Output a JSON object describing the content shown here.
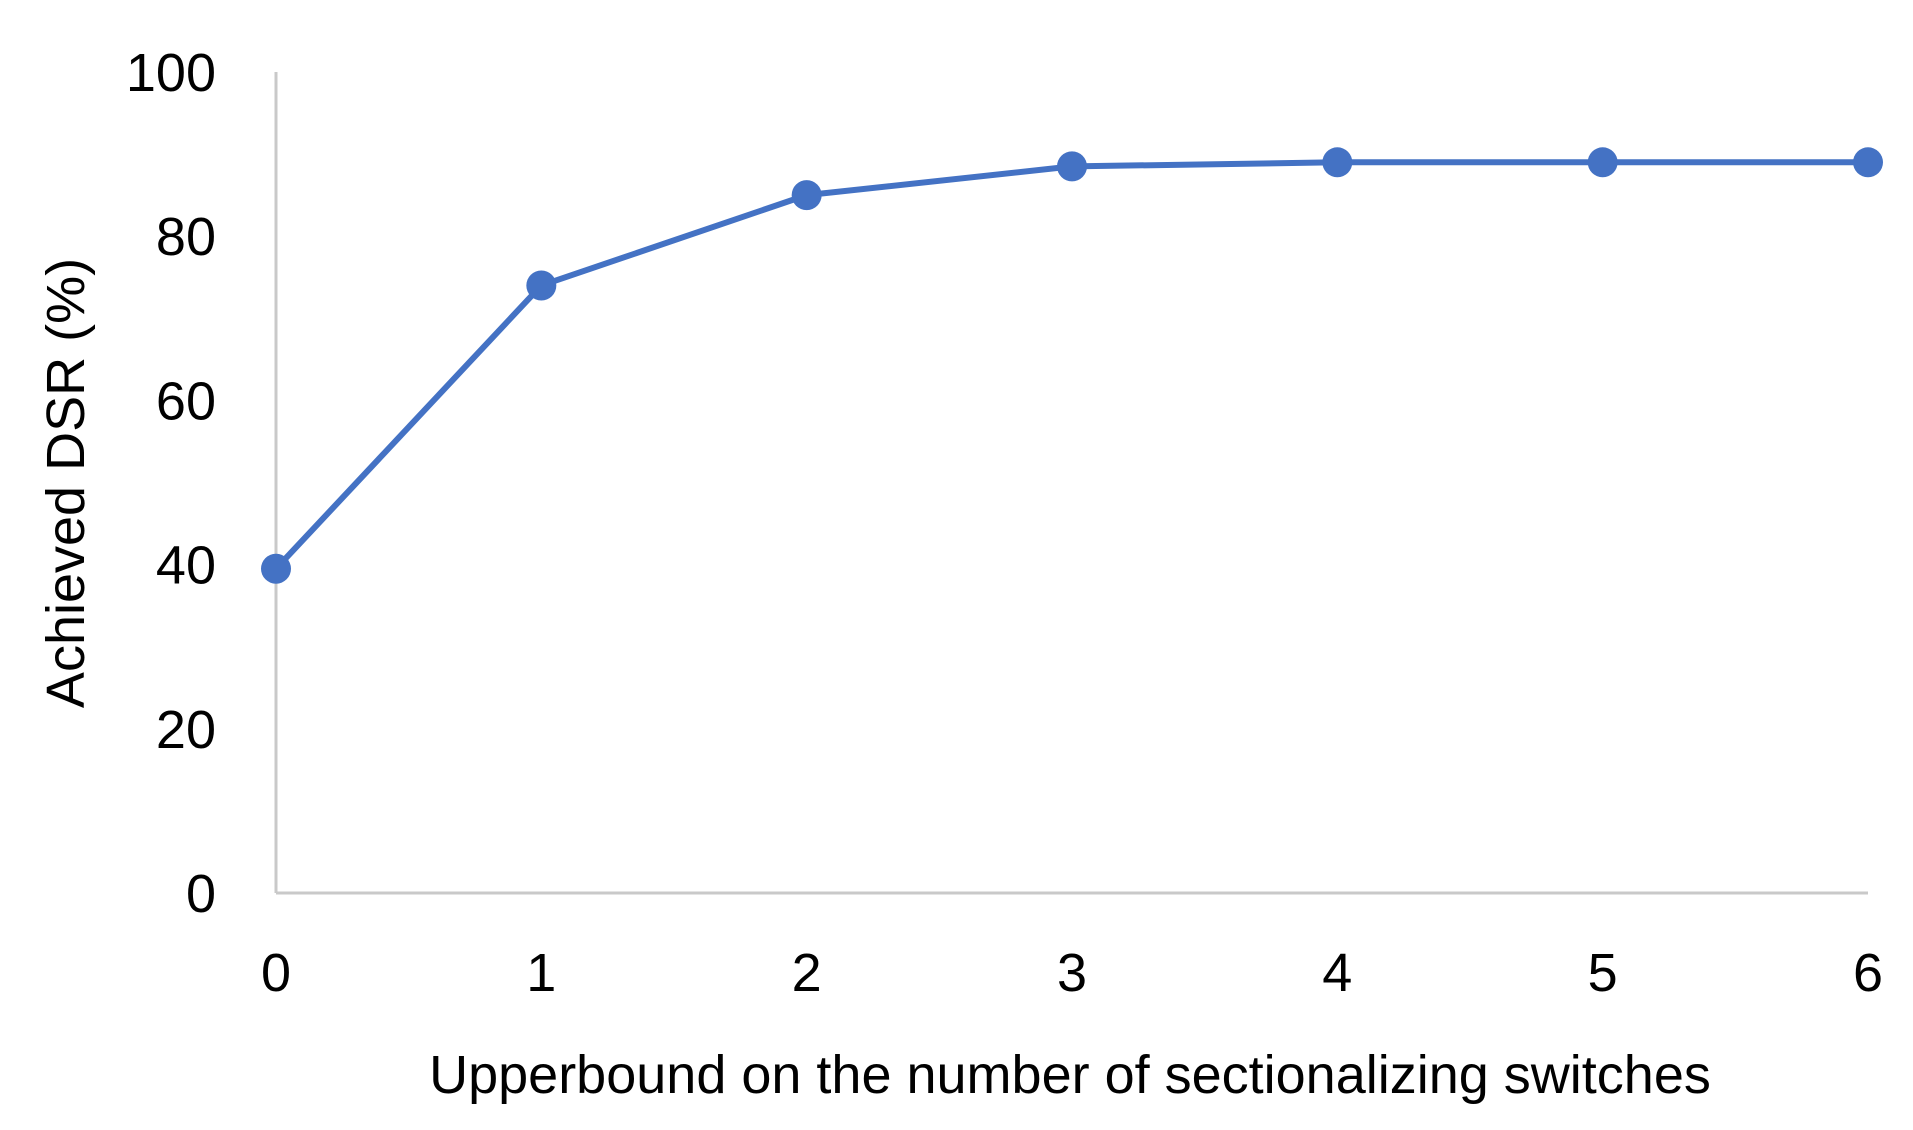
{
  "chart_data": {
    "type": "line",
    "title": "",
    "xlabel": "Upperbound on the number of sectionalizing switches",
    "ylabel": "Achieved DSR (%)",
    "x": [
      0,
      1,
      2,
      3,
      4,
      5,
      6
    ],
    "x_tick_labels": [
      "0",
      "1",
      "2",
      "3",
      "4",
      "5",
      "6"
    ],
    "ylim": [
      0,
      100
    ],
    "y_tick_values": [
      0,
      20,
      40,
      60,
      80,
      100
    ],
    "y_tick_labels": [
      "0",
      "20",
      "40",
      "60",
      "80",
      "100"
    ],
    "grid": false,
    "legend": "none",
    "series": [
      {
        "values": [
          39.5,
          74,
          85,
          88.5,
          89,
          89,
          89
        ],
        "color": "#4472C4",
        "marker": "circle"
      }
    ],
    "axis_color": "#C9C9C9"
  }
}
